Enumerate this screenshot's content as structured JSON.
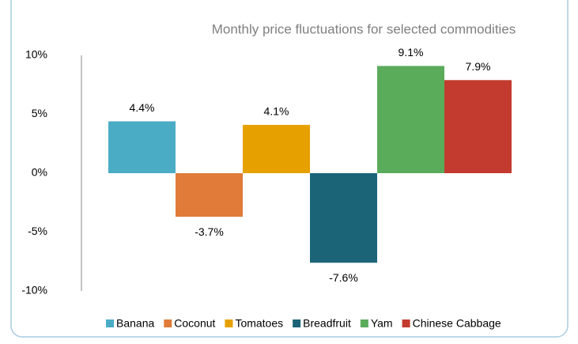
{
  "chart_data": {
    "type": "bar",
    "title": "Monthly price fluctuations for selected commodities",
    "categories": [
      "Banana",
      "Coconut",
      "Tomatoes",
      "Breadfruit",
      "Yam",
      "Chinese Cabbage"
    ],
    "values": [
      4.4,
      -3.7,
      4.1,
      -7.6,
      9.1,
      7.9
    ],
    "value_labels": [
      "4.4%",
      "-3.7%",
      "4.1%",
      "-7.6%",
      "9.1%",
      "7.9%"
    ],
    "colors": [
      "#4bacc6",
      "#e07b39",
      "#e6a100",
      "#1b6478",
      "#5aab5a",
      "#c23b2e"
    ],
    "ylim": [
      -10,
      10
    ],
    "yticks": [
      {
        "value": -10,
        "label": "-10%"
      },
      {
        "value": -5,
        "label": "-5%"
      },
      {
        "value": 0,
        "label": "0%"
      },
      {
        "value": 5,
        "label": "5%"
      },
      {
        "value": 10,
        "label": "10%"
      }
    ],
    "grid": false,
    "legend": "bottom"
  }
}
